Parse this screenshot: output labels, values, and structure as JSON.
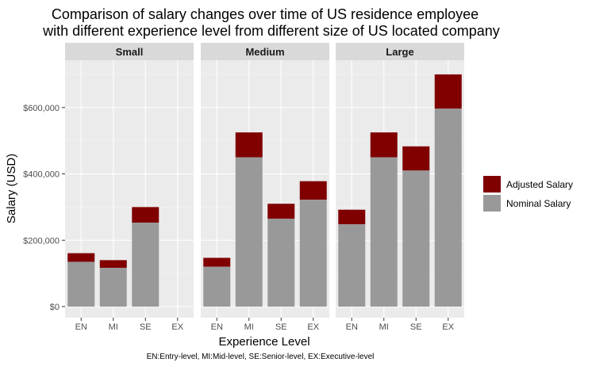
{
  "chart_data": {
    "type": "bar",
    "stacked": true,
    "title_line1": "Comparison of salary changes over time of US residence employee",
    "title_line2": "with different experience level from different size of US located company",
    "xlabel": "Experience Level",
    "ylabel": "Salary (USD)",
    "caption": "EN:Entry-level, MI:Mid-level, SE:Senior-level, EX:Executive-level",
    "categories": [
      "EN",
      "MI",
      "SE",
      "EX"
    ],
    "ylim": [
      0,
      720000
    ],
    "yticks": [
      0,
      200000,
      400000,
      600000
    ],
    "ytick_labels": [
      "$0",
      "$200,000",
      "$400,000",
      "$600,000"
    ],
    "legend_position": "right",
    "series": [
      {
        "name": "Adjusted Salary",
        "color": "#800000"
      },
      {
        "name": "Nominal Salary",
        "color": "#999999"
      }
    ],
    "panels": [
      {
        "name": "Small",
        "nominal": [
          135000,
          117000,
          253000,
          null
        ],
        "adjusted_total": [
          161000,
          140000,
          300000,
          null
        ]
      },
      {
        "name": "Medium",
        "nominal": [
          120000,
          450000,
          265000,
          322000
        ],
        "adjusted_total": [
          147000,
          525000,
          310000,
          378000
        ]
      },
      {
        "name": "Large",
        "nominal": [
          248000,
          450000,
          410000,
          597000
        ],
        "adjusted_total": [
          292000,
          525000,
          483000,
          700000
        ]
      }
    ]
  }
}
